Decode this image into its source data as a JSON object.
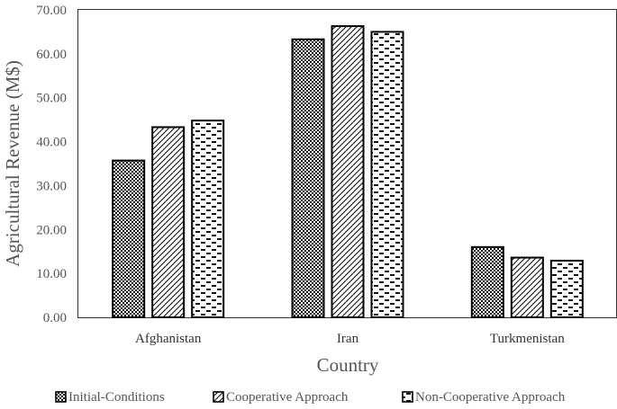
{
  "chart_data": {
    "type": "bar",
    "categories": [
      "Afghanistan",
      "Iran",
      "Turkmenistan"
    ],
    "series": [
      {
        "name": "Initial-Conditions",
        "values": [
          35.7,
          63.3,
          16.0
        ],
        "pattern": "dots"
      },
      {
        "name": "Cooperative Approach",
        "values": [
          43.3,
          66.3,
          13.6
        ],
        "pattern": "diagonal"
      },
      {
        "name": "Non-Cooperative Approach",
        "values": [
          44.8,
          65.0,
          12.9
        ],
        "pattern": "dashes"
      }
    ],
    "xlabel": "Country",
    "ylabel": "Agricultural Revenue (M$)",
    "ylim": [
      0,
      70
    ],
    "yticks": [
      "0.00",
      "10.00",
      "20.00",
      "30.00",
      "40.00",
      "50.00",
      "60.00",
      "70.00"
    ],
    "grid": false,
    "legend_position": "bottom"
  }
}
